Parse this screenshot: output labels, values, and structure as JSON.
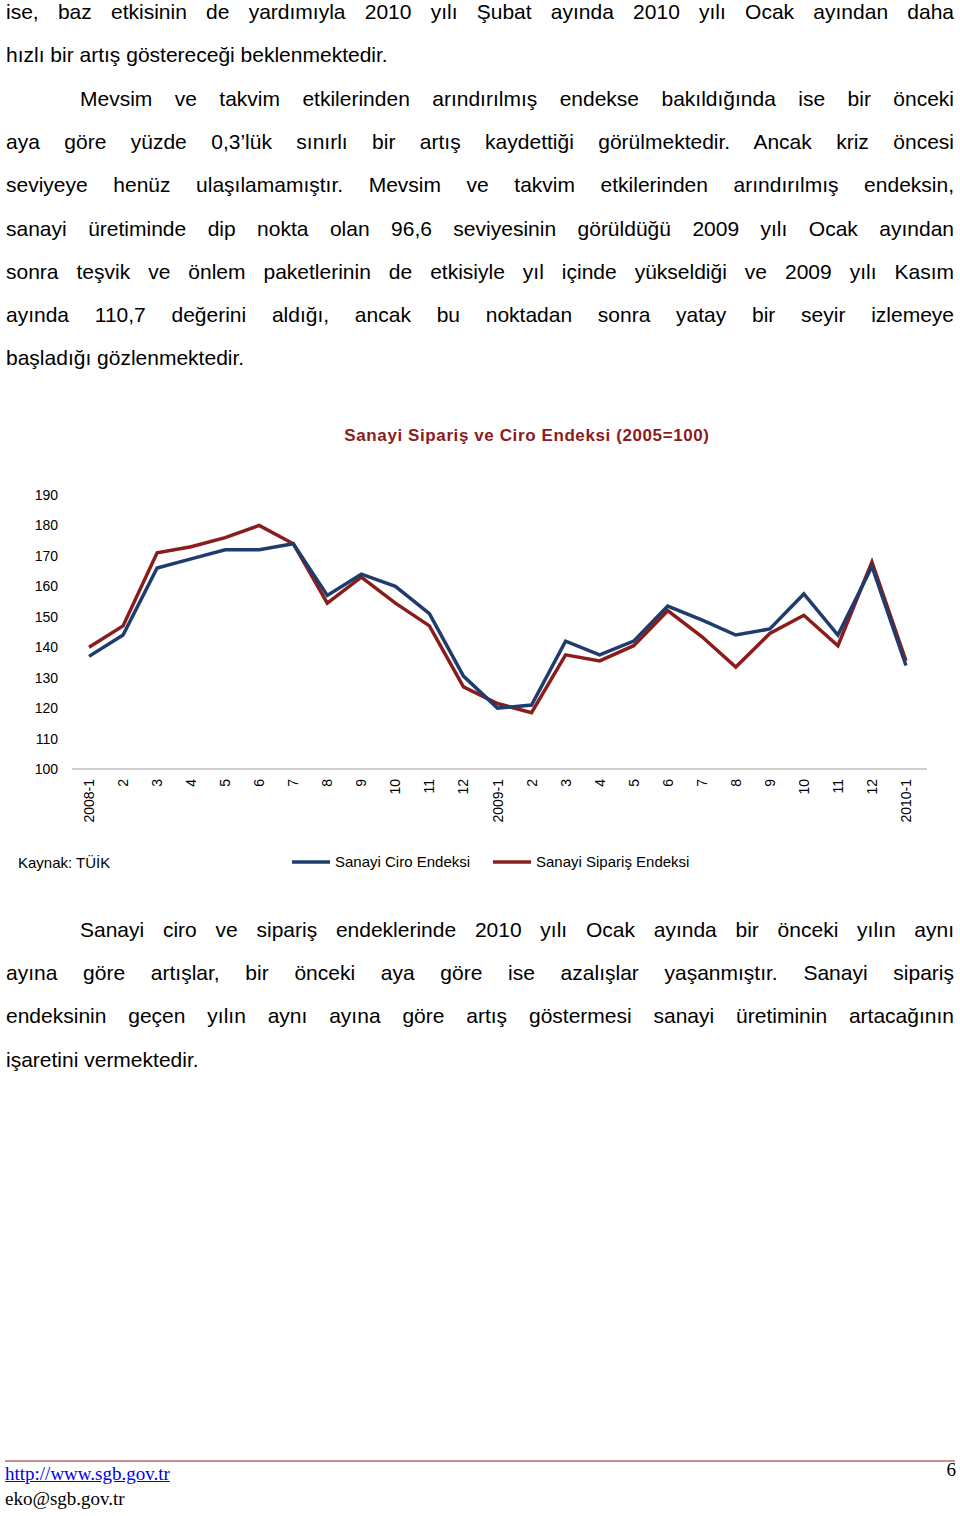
{
  "text_top": [
    [
      "ise, baz etkisinin de yardımıyla 2010 yılı Şubat ayında 2010 yılı Ocak ayından daha",
      "hızlı bir artış göstereceği beklenmektedir."
    ],
    [
      "Mevsim ve takvim etkilerinden arındırılmış endekse bakıldığında ise bir önceki",
      "aya göre yüzde 0,3’lük sınırlı bir artış kaydettiği görülmektedir. Ancak kriz öncesi",
      "seviyeye henüz ulaşılamamıştır. Mevsim ve takvim etkilerinden arındırılmış endeksin,",
      "sanayi üretiminde dip nokta olan 96,6 seviyesinin görüldüğü 2009 yılı Ocak ayından",
      "sonra teşvik ve önlem paketlerinin de etkisiyle yıl içinde yükseldiği ve 2009 yılı Kasım",
      "ayında 110,7 değerini aldığı, ancak bu noktadan sonra yatay bir seyir izlemeye",
      "başladığı gözlenmektedir."
    ]
  ],
  "chart_data": {
    "type": "line",
    "title": "Sanayi Sipariş ve Ciro Endeksi (2005=100)",
    "source": "Kaynak: TÜİK",
    "categories": [
      "2008-1",
      "2",
      "3",
      "4",
      "5",
      "6",
      "7",
      "8",
      "9",
      "10",
      "11",
      "12",
      "2009-1",
      "2",
      "3",
      "4",
      "5",
      "6",
      "7",
      "8",
      "9",
      "10",
      "11",
      "12",
      "2010-1"
    ],
    "series": [
      {
        "name": "Sanayi Ciro Endeksi",
        "color": "#1f3c6e",
        "values": [
          137,
          144,
          166,
          169,
          172,
          172,
          174,
          157,
          164,
          160,
          151,
          130.5,
          120,
          121,
          142,
          137.5,
          142,
          153.5,
          149,
          144,
          146,
          157.5,
          144,
          166.5,
          134
        ]
      },
      {
        "name": "Sanayi Sipariş Endeksi",
        "color": "#8b1c1c",
        "values": [
          140,
          147,
          171,
          173,
          176,
          180,
          174,
          154.5,
          163,
          154.5,
          147,
          127,
          121.5,
          118.5,
          137.5,
          135.5,
          140.5,
          152,
          143.5,
          133.5,
          144.5,
          150.5,
          140.5,
          168,
          135.5
        ]
      }
    ],
    "ylim": [
      100,
      190
    ],
    "yticks": [
      100,
      110,
      120,
      130,
      140,
      150,
      160,
      170,
      180,
      190
    ],
    "grid": false,
    "legend": "bottom"
  },
  "text_bottom": [
    [
      "Sanayi ciro ve sipariş endeklerinde 2010 yılı Ocak ayında bir önceki yılın aynı",
      "ayına göre artışlar, bir önceki aya göre ise azalışlar yaşanmıştır. Sanayi sipariş",
      "endeksinin geçen yılın aynı ayına göre artış göstermesi sanayi üretiminin artacağının",
      "işaretini vermektedir."
    ]
  ],
  "footer": {
    "links": [
      "http://www.sgb.gov.tr",
      "eko@sgb.gov.tr"
    ],
    "page": "6"
  }
}
